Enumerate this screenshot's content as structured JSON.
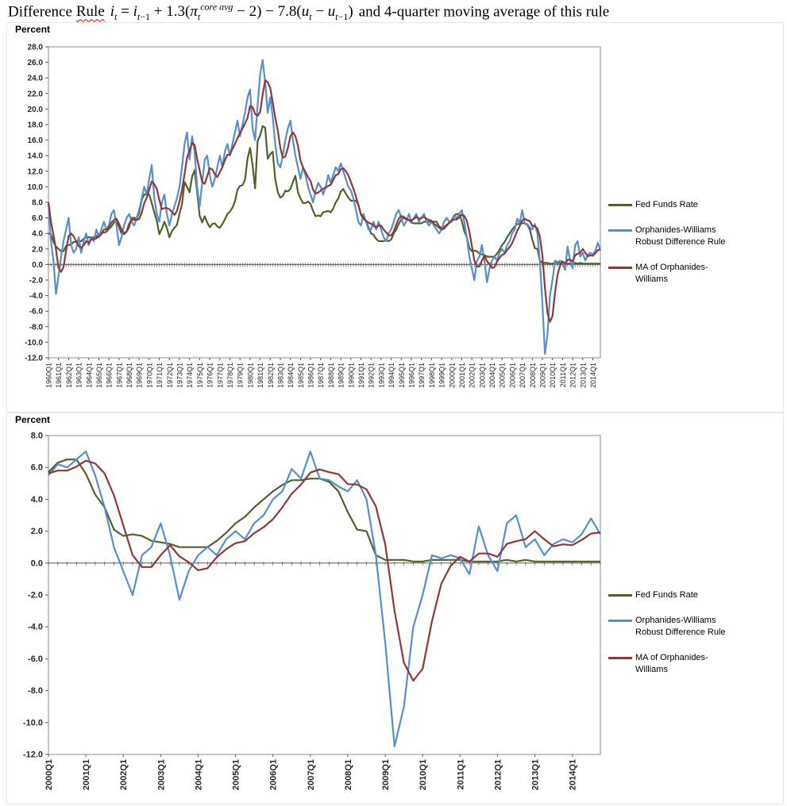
{
  "title": {
    "word1": "Difference",
    "word2": "Rule",
    "formula_html": "<i>i</i><sub><i>t</i></sub> = <i>i</i><sub><i>t</i>−1</sub> + 1.3(<i>π</i><sub><i>t</i></sub><sup><i>core avg</i></sup> − 2) − 7.8(<i>u</i><sub><i>t</i></sub> − <i>u</i><sub><i>t</i>−1</sub>)",
    "plain": "Difference Rule i_t = i_(t-1) + 1.3(pi_t^(core avg) - 2) - 7.8(u_t - u_(t-1)) and 4-quarter moving average of this rule",
    "suffix": "and 4-quarter moving average of this rule"
  },
  "percent_label": "Percent",
  "colors": {
    "fed_funds": "#4f6228",
    "rule": "#558ed5",
    "ma": "#943634",
    "axis": "#595959",
    "plot_border": "#8c8c8c"
  },
  "chart_data": [
    {
      "type": "line",
      "title": "",
      "xlabel": "",
      "ylabel": "Percent",
      "grid": false,
      "legend_position": "right",
      "ylim": [
        -12,
        28
      ],
      "y_ticks": [
        "28.0",
        "26.0",
        "24.0",
        "22.0",
        "20.0",
        "18.0",
        "16.0",
        "14.0",
        "12.0",
        "10.0",
        "8.0",
        "6.0",
        "4.0",
        "2.0",
        "0.0",
        "-2.0",
        "-4.0",
        "-6.0",
        "-8.0",
        "-10.0",
        "-12.0"
      ],
      "x_label_every": 4,
      "x_frequency": "quarterly",
      "x_tick_labels": [
        "1960Q1",
        "1961Q1",
        "1962Q1",
        "1963Q1",
        "1964Q1",
        "1965Q1",
        "1966Q1",
        "1967Q1",
        "1968Q1",
        "1969Q1",
        "1970Q1",
        "1971Q1",
        "1972Q1",
        "1973Q1",
        "1974Q1",
        "1975Q1",
        "1976Q1",
        "1977Q1",
        "1978Q1",
        "1979Q1",
        "1980Q1",
        "1981Q1",
        "1982Q1",
        "1983Q1",
        "1984Q1",
        "1985Q1",
        "1986Q1",
        "1987Q1",
        "1988Q1",
        "1989Q1",
        "1990Q1",
        "1991Q1",
        "1992Q1",
        "1993Q1",
        "1994Q1",
        "1995Q1",
        "1996Q1",
        "1997Q1",
        "1998Q1",
        "1999Q1",
        "2000Q1",
        "2001Q1",
        "2002Q1",
        "2003Q1",
        "2004Q1",
        "2005Q1",
        "2006Q1",
        "2007Q1",
        "2008Q1",
        "2009Q1",
        "2010Q1",
        "2011Q1",
        "2012Q1",
        "2013Q1",
        "2014Q1"
      ],
      "series": [
        {
          "name": "Fed Funds Rate",
          "color": "#4f6228",
          "values": [
            4.0,
            3.9,
            2.9,
            2.3,
            2.0,
            1.7,
            1.7,
            2.4,
            2.5,
            2.6,
            2.9,
            2.9,
            3.0,
            3.0,
            3.3,
            3.5,
            3.5,
            3.5,
            3.5,
            3.6,
            3.9,
            4.1,
            4.1,
            4.2,
            4.6,
            4.9,
            5.4,
            5.6,
            4.8,
            4.0,
            3.9,
            4.2,
            4.8,
            6.0,
            6.0,
            5.9,
            6.6,
            8.3,
            9.0,
            9.0,
            9.0,
            7.9,
            6.7,
            5.6,
            3.9,
            4.6,
            5.5,
            4.7,
            3.5,
            4.3,
            4.7,
            5.1,
            6.5,
            7.8,
            10.6,
            10.0,
            9.3,
            11.3,
            12.1,
            9.4,
            6.3,
            5.4,
            6.2,
            5.4,
            4.8,
            5.2,
            5.3,
            4.9,
            4.7,
            5.2,
            5.8,
            6.5,
            6.8,
            7.3,
            8.1,
            9.6,
            10.1,
            10.2,
            10.9,
            13.6,
            15.0,
            12.7,
            9.8,
            15.9,
            16.6,
            17.8,
            17.6,
            13.6,
            14.2,
            14.5,
            11.0,
            9.3,
            8.6,
            8.8,
            9.5,
            9.4,
            9.7,
            10.6,
            11.4,
            9.3,
            8.5,
            7.9,
            7.9,
            8.1,
            7.8,
            6.9,
            6.2,
            6.3,
            6.2,
            6.7,
            6.8,
            6.9,
            6.7,
            7.2,
            8.0,
            8.5,
            9.4,
            9.7,
            9.1,
            8.6,
            8.2,
            8.2,
            8.2,
            7.7,
            6.4,
            5.9,
            5.6,
            4.8,
            4.0,
            3.8,
            3.3,
            3.0,
            3.0,
            3.0,
            3.1,
            3.0,
            3.2,
            4.0,
            4.5,
            5.2,
            5.8,
            6.0,
            5.8,
            5.7,
            5.4,
            5.3,
            5.3,
            5.3,
            5.3,
            5.5,
            5.5,
            5.5,
            5.5,
            5.5,
            5.5,
            4.9,
            4.7,
            4.8,
            5.1,
            5.3,
            5.7,
            6.3,
            6.5,
            6.5,
            5.6,
            4.3,
            3.5,
            2.1,
            1.7,
            1.8,
            1.7,
            1.4,
            1.3,
            1.2,
            1.0,
            1.0,
            1.0,
            1.0,
            1.4,
            1.9,
            2.5,
            2.9,
            3.5,
            4.0,
            4.5,
            4.9,
            5.2,
            5.2,
            5.3,
            5.3,
            5.1,
            4.5,
            3.2,
            2.1,
            2.0,
            0.5,
            0.2,
            0.2,
            0.2,
            0.1,
            0.1,
            0.2,
            0.2,
            0.2,
            0.2,
            0.1,
            0.1,
            0.1,
            0.1,
            0.2,
            0.1,
            0.2,
            0.1,
            0.1,
            0.1,
            0.1,
            0.1,
            0.1,
            0.1,
            0.1
          ]
        },
        {
          "name": "Orphanides-Williams Robust Difference Rule",
          "color": "#558ed5",
          "values": [
            8.0,
            3.0,
            0.5,
            -3.8,
            -1.5,
            1.0,
            3.0,
            4.5,
            6.0,
            2.5,
            1.5,
            2.0,
            3.5,
            1.5,
            3.0,
            4.0,
            2.5,
            3.5,
            3.0,
            4.5,
            3.5,
            4.5,
            5.5,
            4.5,
            5.0,
            6.5,
            7.0,
            5.0,
            2.5,
            3.5,
            5.0,
            6.0,
            6.5,
            5.5,
            5.0,
            6.0,
            7.0,
            8.5,
            10.0,
            9.0,
            11.0,
            12.8,
            8.5,
            6.5,
            5.5,
            8.0,
            9.0,
            6.5,
            5.0,
            6.5,
            7.5,
            8.5,
            10.0,
            12.5,
            15.5,
            17.0,
            13.5,
            16.5,
            14.5,
            10.0,
            7.5,
            10.5,
            13.5,
            14.0,
            11.5,
            10.0,
            11.0,
            12.5,
            14.0,
            12.5,
            14.5,
            15.5,
            14.0,
            15.5,
            17.0,
            18.5,
            16.5,
            18.0,
            19.5,
            21.5,
            22.5,
            17.5,
            16.0,
            20.5,
            24.5,
            26.3,
            23.5,
            19.5,
            21.5,
            19.0,
            15.5,
            13.0,
            12.5,
            14.0,
            16.0,
            17.5,
            18.5,
            16.0,
            14.0,
            12.5,
            11.0,
            12.5,
            11.5,
            10.0,
            9.0,
            8.0,
            9.5,
            10.5,
            10.0,
            9.0,
            10.0,
            11.5,
            10.5,
            11.5,
            12.5,
            12.0,
            13.0,
            12.0,
            11.0,
            10.0,
            9.5,
            8.5,
            7.0,
            5.5,
            5.0,
            6.5,
            5.5,
            4.5,
            4.5,
            5.5,
            4.5,
            5.5,
            4.5,
            3.5,
            3.0,
            4.0,
            4.5,
            5.5,
            6.5,
            7.0,
            6.0,
            5.0,
            5.5,
            6.5,
            5.5,
            6.0,
            6.5,
            5.5,
            6.0,
            6.5,
            5.5,
            5.0,
            5.5,
            5.0,
            4.5,
            4.0,
            4.5,
            5.5,
            6.0,
            5.5,
            5.5,
            6.2,
            6.0,
            6.5,
            7.0,
            5.5,
            3.5,
            1.0,
            -0.5,
            -2.0,
            0.5,
            1.0,
            2.5,
            0.5,
            -2.3,
            -0.5,
            0.5,
            1.0,
            0.5,
            1.5,
            2.0,
            1.5,
            2.5,
            3.0,
            4.0,
            4.5,
            5.9,
            5.3,
            7.0,
            5.3,
            5.2,
            4.8,
            4.5,
            5.2,
            4.0,
            0.5,
            -5.0,
            -11.5,
            -9.0,
            -4.0,
            -2.0,
            0.5,
            0.3,
            0.5,
            0.3,
            -0.7,
            2.3,
            0.5,
            -0.5,
            2.5,
            3.0,
            1.0,
            1.5,
            0.5,
            1.2,
            1.5,
            1.3,
            1.8,
            2.8,
            1.8
          ]
        },
        {
          "name": "MA of Orphanides-Williams",
          "color": "#943634",
          "derived": "4-quarter moving average of Orphanides-Williams Robust Difference Rule"
        }
      ]
    },
    {
      "type": "line",
      "title": "",
      "xlabel": "",
      "ylabel": "Percent",
      "grid": false,
      "legend_position": "right",
      "ylim": [
        -12,
        8
      ],
      "y_ticks": [
        "8.0",
        "6.0",
        "4.0",
        "2.0",
        "0.0",
        "-2.0",
        "-4.0",
        "-6.0",
        "-8.0",
        "-10.0",
        "-12.0"
      ],
      "x_label_every": 4,
      "x_frequency": "quarterly",
      "slice_start": 160,
      "x_tick_labels": [
        "2000Q1",
        "2001Q1",
        "2002Q1",
        "2003Q1",
        "2004Q1",
        "2005Q1",
        "2006Q1",
        "2007Q1",
        "2008Q1",
        "2009Q1",
        "2010Q1",
        "2011Q1",
        "2012Q1",
        "2013Q1",
        "2014Q1"
      ],
      "series": [
        {
          "name": "Fed Funds Rate",
          "color": "#4f6228",
          "values": [
            5.7,
            6.3,
            6.5,
            6.5,
            5.6,
            4.3,
            3.5,
            2.1,
            1.7,
            1.8,
            1.7,
            1.4,
            1.3,
            1.2,
            1.0,
            1.0,
            1.0,
            1.0,
            1.4,
            1.9,
            2.5,
            2.9,
            3.5,
            4.0,
            4.5,
            4.9,
            5.2,
            5.2,
            5.3,
            5.3,
            5.1,
            4.5,
            3.2,
            2.1,
            2.0,
            0.5,
            0.2,
            0.2,
            0.2,
            0.1,
            0.1,
            0.2,
            0.2,
            0.2,
            0.2,
            0.1,
            0.1,
            0.1,
            0.1,
            0.2,
            0.1,
            0.2,
            0.1,
            0.1,
            0.1,
            0.1,
            0.1,
            0.1,
            0.1,
            0.1
          ]
        },
        {
          "name": "Orphanides-Williams Robust Difference Rule",
          "color": "#558ed5",
          "values": [
            5.5,
            6.2,
            6.0,
            6.5,
            7.0,
            5.5,
            3.5,
            1.0,
            -0.5,
            -2.0,
            0.5,
            1.0,
            2.5,
            0.5,
            -2.3,
            -0.5,
            0.5,
            1.0,
            0.5,
            1.5,
            2.0,
            1.5,
            2.5,
            3.0,
            4.0,
            4.5,
            5.9,
            5.3,
            7.0,
            5.3,
            5.2,
            4.8,
            4.5,
            5.2,
            4.0,
            0.5,
            -5.0,
            -11.5,
            -9.0,
            -4.0,
            -2.0,
            0.5,
            0.3,
            0.5,
            0.3,
            -0.7,
            2.3,
            0.5,
            -0.5,
            2.5,
            3.0,
            1.0,
            1.5,
            0.5,
            1.2,
            1.5,
            1.3,
            1.8,
            2.8,
            1.8
          ]
        },
        {
          "name": "MA of Orphanides-Williams",
          "color": "#943634",
          "derived": "4-quarter moving average of Orphanides-Williams Robust Difference Rule, 2000Q1-2014Q4"
        }
      ]
    }
  ]
}
